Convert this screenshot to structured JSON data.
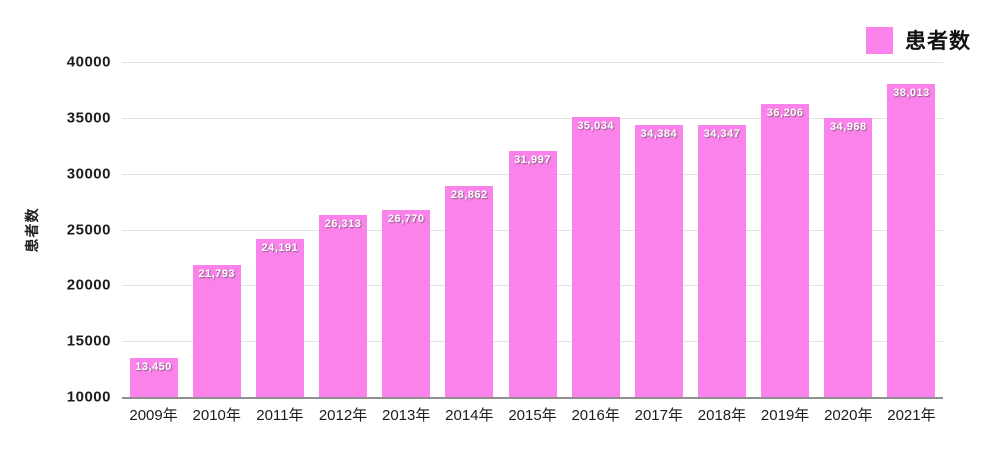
{
  "legend": {
    "label": "患者数",
    "swatch_color": "#fa82ea"
  },
  "chart_data": {
    "type": "bar",
    "title": "",
    "categories": [
      "2009年",
      "2010年",
      "2011年",
      "2012年",
      "2013年",
      "2014年",
      "2015年",
      "2016年",
      "2017年",
      "2018年",
      "2019年",
      "2020年",
      "2021年"
    ],
    "series": [
      {
        "name": "患者数",
        "values": [
          13450,
          21793,
          24191,
          26313,
          26770,
          28862,
          31997,
          35034,
          34384,
          34347,
          36206,
          34968,
          38013
        ],
        "value_labels": [
          "13,450",
          "21,793",
          "24,191",
          "26,313",
          "26,770",
          "28,862",
          "31,997",
          "35,034",
          "34,384",
          "34,347",
          "36,206",
          "34,968",
          "38,013"
        ]
      }
    ],
    "xlabel": "",
    "ylabel": "患者数",
    "ylim": [
      10000,
      40000
    ],
    "yticks": [
      10000,
      15000,
      20000,
      25000,
      30000,
      35000,
      40000
    ],
    "bar_color": "#fa82ea",
    "grid": "horizontal",
    "legend_position": "top-right"
  }
}
